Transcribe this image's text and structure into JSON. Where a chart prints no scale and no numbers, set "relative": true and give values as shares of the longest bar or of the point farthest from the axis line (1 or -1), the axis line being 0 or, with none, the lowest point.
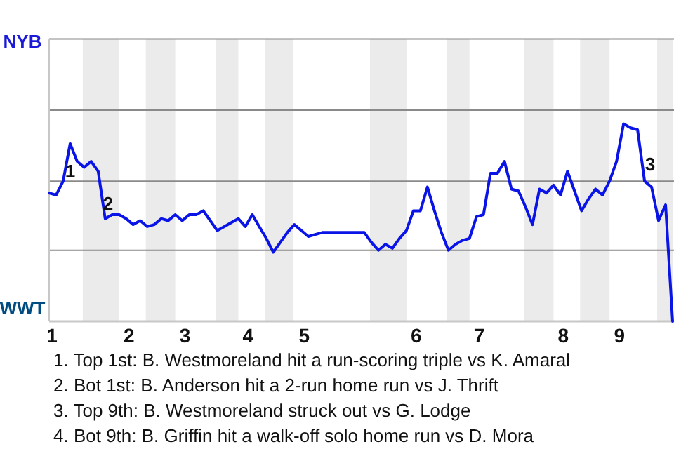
{
  "chart_data": {
    "type": "line",
    "relative": true,
    "categories": [
      "1",
      null,
      null,
      null,
      null,
      null,
      null,
      null,
      null,
      null,
      null,
      "2",
      null,
      null,
      null,
      null,
      null,
      null,
      null,
      "3",
      null,
      null,
      null,
      null,
      null,
      null,
      null,
      null,
      "4",
      null,
      null,
      null,
      null,
      null,
      null,
      null,
      "5",
      null,
      null,
      null,
      null,
      null,
      null,
      null,
      null,
      null,
      null,
      null,
      null,
      null,
      null,
      null,
      "6",
      null,
      null,
      null,
      null,
      null,
      null,
      null,
      null,
      "7",
      null,
      null,
      null,
      null,
      null,
      null,
      null,
      null,
      null,
      null,
      null,
      "8",
      null,
      null,
      null,
      null,
      null,
      null,
      null,
      "9",
      null,
      null,
      null,
      null,
      null,
      null,
      null,
      null
    ],
    "marker": "none",
    "line_style": "solid",
    "ref_lines": [
      {
        "axis": "y",
        "value": 0.36,
        "color": "#8a8a8a"
      },
      {
        "axis": "y",
        "value": 0.71,
        "color": "#8a8a8a"
      },
      {
        "axis": "y",
        "value": 1.07,
        "color": "#8a8a8a"
      },
      {
        "axis": "y",
        "value": 1.43,
        "color": "#8a8a8a"
      }
    ],
    "series": [
      {
        "color": "#0a14e6",
        "values": [
          0.65,
          0.64,
          0.71,
          0.9,
          0.81,
          0.78,
          0.81,
          0.76,
          0.52,
          0.54,
          0.54,
          0.52,
          0.49,
          0.51,
          0.48,
          0.49,
          0.52,
          0.51,
          0.54,
          0.51,
          0.54,
          0.54,
          0.56,
          0.51,
          0.46,
          0.48,
          0.5,
          0.52,
          0.48,
          0.54,
          0.48,
          0.42,
          0.35,
          0.4,
          0.45,
          0.49,
          0.46,
          0.43,
          0.44,
          0.45,
          0.45,
          0.45,
          0.45,
          0.45,
          0.45,
          0.45,
          0.4,
          0.36,
          0.39,
          0.37,
          0.42,
          0.46,
          0.56,
          0.56,
          0.68,
          0.56,
          0.45,
          0.36,
          0.39,
          0.41,
          0.42,
          0.53,
          0.54,
          0.75,
          0.75,
          0.81,
          0.67,
          0.66,
          0.58,
          0.49,
          0.67,
          0.65,
          0.69,
          0.64,
          0.76,
          0.66,
          0.56,
          0.62,
          0.67,
          0.64,
          0.71,
          0.81,
          1,
          0.98,
          0.97,
          0.71,
          0.68,
          0.51,
          0.59,
          0
        ]
      }
    ],
    "annotations": [
      "NYB",
      "WWT",
      "1",
      "2",
      "3",
      "1. Top 1st: B. Westmoreland hit a run-scoring triple vs K. Amaral",
      "2. Bot 1st: B. Anderson hit a 2-run home run vs J. Thrift",
      "3. Top 9th: B. Westmoreland struck out vs G. Lodge",
      "4. Bot 9th: B. Griffin hit a walk-off solo home run vs D. Mora"
    ]
  }
}
